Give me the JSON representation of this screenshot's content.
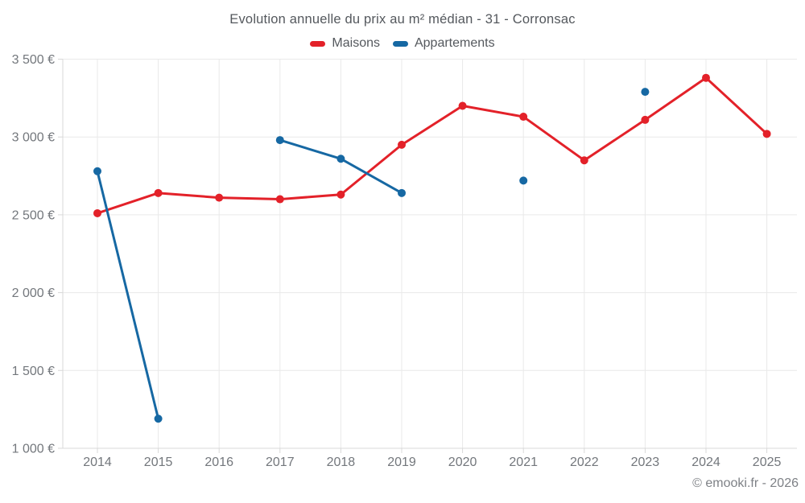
{
  "chart_data": {
    "type": "line",
    "title": "Evolution annuelle du prix au m² médian - 31 - Corronsac",
    "x": [
      2014,
      2015,
      2016,
      2017,
      2018,
      2019,
      2020,
      2021,
      2022,
      2023,
      2024,
      2025
    ],
    "series": [
      {
        "name": "Maisons",
        "color": "#e32129",
        "values": [
          2510,
          2640,
          2610,
          2600,
          2630,
          2950,
          3200,
          3130,
          2850,
          3110,
          3380,
          3020
        ]
      },
      {
        "name": "Appartements",
        "color": "#1668a3",
        "values": [
          2780,
          1190,
          null,
          2980,
          2860,
          2640,
          null,
          2720,
          null,
          3290,
          null,
          null
        ]
      }
    ],
    "ylim": [
      1000,
      3500
    ],
    "ytick_step": 500,
    "ytick_labels": [
      "1 000 €",
      "1 500 €",
      "2 000 €",
      "2 500 €",
      "3 000 €",
      "3 500 €"
    ],
    "grid": true,
    "legend_position": "top",
    "footer": "© emooki.fr - 2026"
  },
  "colors": {
    "gridline": "#e9e9e9",
    "axis_border": "#d8d8d8",
    "tick": "#d8d8d8",
    "axis_text": "#73777c",
    "title_text": "#54585d"
  }
}
